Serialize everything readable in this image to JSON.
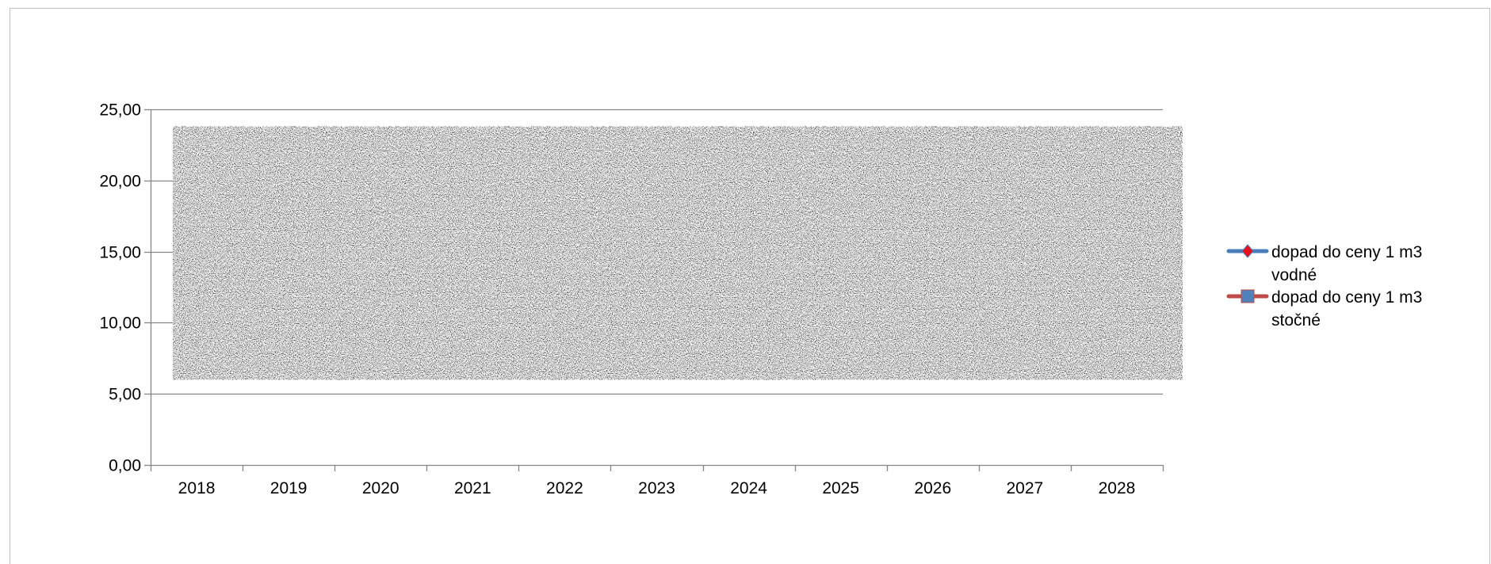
{
  "chart_data": {
    "type": "line",
    "categories": [
      "2018",
      "2019",
      "2020",
      "2021",
      "2022",
      "2023",
      "2024",
      "2025",
      "2026",
      "2027",
      "2028"
    ],
    "y_ticks": [
      "0,00",
      "5,00",
      "10,00",
      "15,00",
      "20,00",
      "25,00"
    ],
    "ylim": [
      0,
      25
    ],
    "grid": true,
    "legend_position": "right",
    "obscured_region": {
      "y_from": 6,
      "y_to": 23.8
    },
    "series": [
      {
        "name": "dopad do ceny 1 m3 vodné",
        "name_lines": [
          "dopad do ceny 1 m3",
          "vodné"
        ],
        "color": "#4a7ebb",
        "marker_color": "#e8111a",
        "marker": "diamond"
      },
      {
        "name": "dopad do ceny 1 m3 stočné",
        "name_lines": [
          "dopad do ceny 1 m3",
          "stočné"
        ],
        "color": "#be4b48",
        "marker_color": "#4f81bd",
        "marker": "square"
      }
    ]
  }
}
